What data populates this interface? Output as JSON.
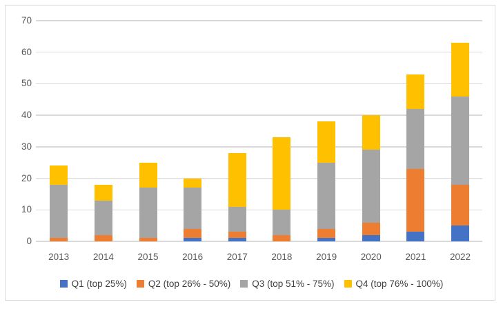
{
  "chart_data": {
    "type": "bar",
    "stacked": true,
    "title": "",
    "xlabel": "",
    "ylabel": "",
    "categories": [
      "2013",
      "2014",
      "2015",
      "2016",
      "2017",
      "2018",
      "2019",
      "2020",
      "2021",
      "2022"
    ],
    "series": [
      {
        "name": "Q1 (top 25%)",
        "color": "#4472C4",
        "values": [
          0,
          0,
          0,
          1,
          1,
          0,
          1,
          2,
          3,
          5
        ]
      },
      {
        "name": "Q2 (top 26% - 50%)",
        "color": "#ED7D31",
        "values": [
          1,
          2,
          1,
          3,
          2,
          2,
          3,
          4,
          20,
          13
        ]
      },
      {
        "name": "Q3 (top 51% - 75%)",
        "color": "#A5A5A5",
        "values": [
          17,
          11,
          16,
          13,
          8,
          8,
          21,
          23,
          19,
          28
        ]
      },
      {
        "name": "Q4 (top 76% - 100%)",
        "color": "#FFC000",
        "values": [
          6,
          5,
          8,
          3,
          17,
          23,
          13,
          11,
          11,
          17
        ]
      }
    ],
    "totals": [
      24,
      18,
      25,
      20,
      28,
      33,
      38,
      40,
      53,
      63
    ],
    "y_axis": {
      "min": 0,
      "max": 70,
      "step": 10,
      "ticks": [
        "0",
        "10",
        "20",
        "30",
        "40",
        "50",
        "60",
        "70"
      ]
    },
    "grid": true,
    "legend_position": "bottom",
    "colors": {
      "gridline": "#D9D9D9",
      "border": "#D9D9D9",
      "axis_text": "#595959",
      "legend_text": "#404040",
      "background": "#FFFFFF"
    }
  }
}
